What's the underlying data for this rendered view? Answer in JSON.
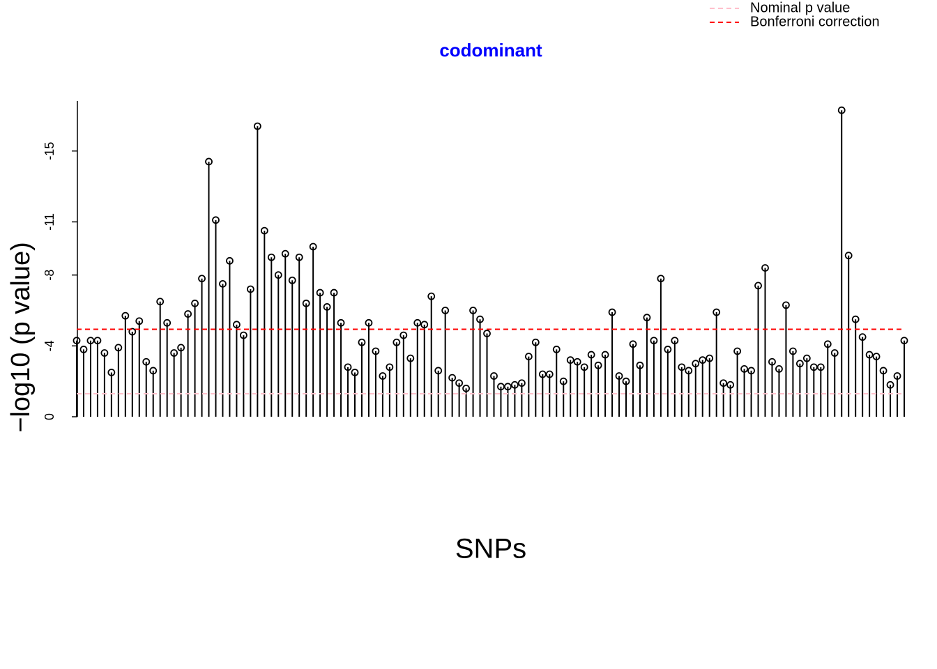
{
  "chart_data": {
    "type": "manhattan",
    "title": "codominant",
    "title_color": "#0000ff",
    "xlabel": "SNPs",
    "ylabel": "−log10 (p value)",
    "x": [
      0,
      1,
      2,
      3,
      4,
      5,
      6,
      7,
      8,
      9,
      10,
      11,
      12,
      13,
      14,
      15,
      16,
      17,
      18,
      19,
      20,
      21,
      22,
      23,
      24,
      25,
      26,
      27,
      28,
      29,
      30,
      31,
      32,
      33,
      34,
      35,
      36,
      37,
      38,
      39,
      40,
      41,
      42,
      43,
      44,
      45,
      46,
      47,
      48,
      49,
      50,
      51,
      52,
      53,
      54,
      55,
      56,
      57,
      58,
      59,
      60,
      61,
      62,
      63,
      64,
      65,
      66,
      67,
      68,
      69,
      70,
      71,
      72,
      73,
      74,
      75,
      76,
      77,
      78,
      79,
      80,
      81,
      82,
      83,
      84,
      85,
      86,
      87,
      88,
      89,
      90,
      91,
      92,
      93,
      94,
      95,
      96,
      97,
      98,
      99,
      100,
      101,
      102,
      103,
      104,
      105,
      106,
      107,
      108,
      109,
      110,
      111,
      112,
      113,
      114,
      115,
      116,
      117,
      118,
      119
    ],
    "values": [
      -4.3,
      -3.8,
      -4.3,
      -4.3,
      -3.6,
      -2.5,
      -3.9,
      -5.7,
      -4.8,
      -5.4,
      -3.1,
      -2.6,
      -6.5,
      -5.3,
      -3.6,
      -3.9,
      -5.8,
      -6.4,
      -7.8,
      -14.4,
      -11.1,
      -7.5,
      -8.8,
      -5.2,
      -4.6,
      -7.2,
      -16.4,
      -10.5,
      -9.0,
      -8.0,
      -9.2,
      -7.7,
      -9.0,
      -6.4,
      -9.6,
      -7.0,
      -6.2,
      -7.0,
      -5.3,
      -2.8,
      -2.5,
      -4.2,
      -5.3,
      -3.7,
      -2.3,
      -2.8,
      -4.2,
      -4.6,
      -3.3,
      -5.3,
      -5.2,
      -6.8,
      -2.6,
      -6.0,
      -2.2,
      -1.9,
      -1.6,
      -6.0,
      -5.5,
      -4.7,
      -2.3,
      -1.7,
      -1.7,
      -1.8,
      -1.9,
      -3.4,
      -4.2,
      -2.4,
      -2.4,
      -3.8,
      -2.0,
      -3.2,
      -3.1,
      -2.8,
      -3.5,
      -2.9,
      -3.5,
      -5.9,
      -2.3,
      -2.0,
      -4.1,
      -2.9,
      -5.6,
      -4.3,
      -7.8,
      -3.8,
      -4.3,
      -2.8,
      -2.6,
      -3.0,
      -3.2,
      -3.3,
      -5.9,
      -1.9,
      -1.8,
      -3.7,
      -2.7,
      -2.6,
      -7.4,
      -8.4,
      -3.1,
      -2.7,
      -6.3,
      -3.7,
      -3.0,
      -3.3,
      -2.8,
      -2.8,
      -4.1,
      -3.6,
      -17.3,
      -9.1,
      -5.5,
      -4.5,
      -3.5,
      -3.4,
      -2.6,
      -1.8,
      -2.3,
      -4.3
    ],
    "color": "#000000",
    "xlim": [
      0,
      119
    ],
    "ylim": [
      0.5,
      -17.8
    ],
    "yticks": [
      0,
      -4,
      -8,
      -11,
      -15
    ],
    "reference_lines": [
      {
        "name": "Nominal p value",
        "value": -1.3,
        "color": "#ffc0cb"
      },
      {
        "name": "Bonferroni correction",
        "value": -4.94,
        "color": "#ff0000"
      }
    ],
    "legend": "top-right"
  }
}
